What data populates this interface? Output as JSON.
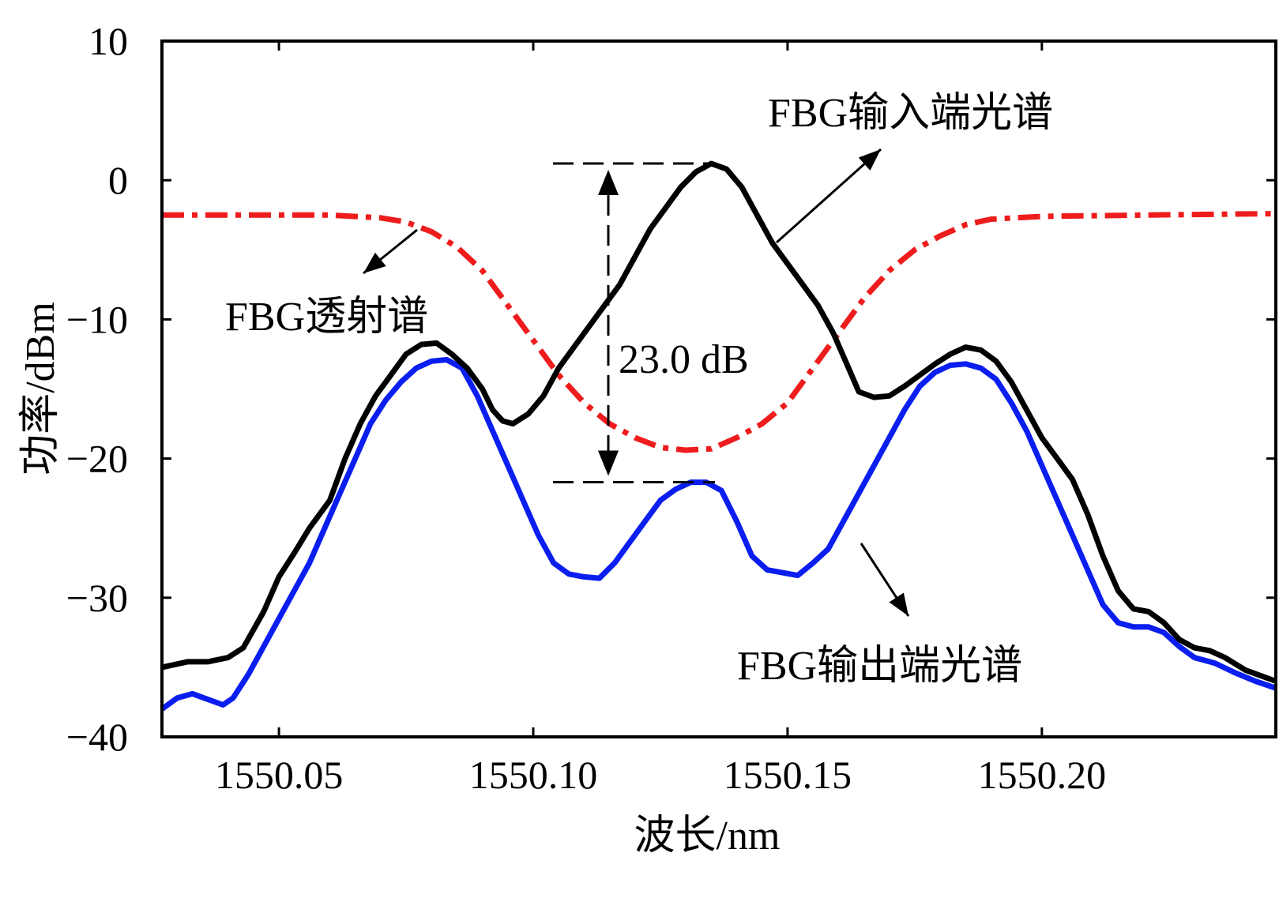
{
  "chart_data": {
    "type": "line",
    "xlabel": "波长/nm",
    "ylabel": "功率/dBm",
    "xlim": [
      1550.027,
      1550.246
    ],
    "ylim": [
      -40,
      10
    ],
    "xticks": [
      1550.05,
      1550.1,
      1550.15,
      1550.2
    ],
    "xtick_labels": [
      "1550.05",
      "1550.10",
      "1550.15",
      "1550.20"
    ],
    "yticks": [
      10,
      0,
      -10,
      -20,
      -30,
      -40
    ],
    "ytick_labels": [
      "10",
      "0",
      "−10",
      "−20",
      "−30",
      "−40"
    ],
    "grid": false,
    "series": [
      {
        "name": "FBG输入端光谱",
        "color": "#000000",
        "style": "solid",
        "points": [
          [
            1550.027,
            -35.0
          ],
          [
            1550.032,
            -34.6
          ],
          [
            1550.036,
            -34.6
          ],
          [
            1550.04,
            -34.3
          ],
          [
            1550.043,
            -33.6
          ],
          [
            1550.047,
            -31.0
          ],
          [
            1550.05,
            -28.5
          ],
          [
            1550.053,
            -26.8
          ],
          [
            1550.056,
            -25.0
          ],
          [
            1550.06,
            -23.0
          ],
          [
            1550.063,
            -20.0
          ],
          [
            1550.066,
            -17.5
          ],
          [
            1550.069,
            -15.5
          ],
          [
            1550.072,
            -14.0
          ],
          [
            1550.075,
            -12.5
          ],
          [
            1550.078,
            -11.8
          ],
          [
            1550.081,
            -11.7
          ],
          [
            1550.084,
            -12.5
          ],
          [
            1550.087,
            -13.5
          ],
          [
            1550.09,
            -15.0
          ],
          [
            1550.092,
            -16.5
          ],
          [
            1550.094,
            -17.3
          ],
          [
            1550.096,
            -17.5
          ],
          [
            1550.099,
            -16.8
          ],
          [
            1550.102,
            -15.5
          ],
          [
            1550.105,
            -13.5
          ],
          [
            1550.108,
            -12.0
          ],
          [
            1550.111,
            -10.5
          ],
          [
            1550.114,
            -9.0
          ],
          [
            1550.117,
            -7.5
          ],
          [
            1550.12,
            -5.5
          ],
          [
            1550.123,
            -3.5
          ],
          [
            1550.126,
            -2.0
          ],
          [
            1550.129,
            -0.5
          ],
          [
            1550.132,
            0.6
          ],
          [
            1550.135,
            1.2
          ],
          [
            1550.138,
            0.8
          ],
          [
            1550.141,
            -0.5
          ],
          [
            1550.144,
            -2.5
          ],
          [
            1550.147,
            -4.5
          ],
          [
            1550.15,
            -6.0
          ],
          [
            1550.153,
            -7.5
          ],
          [
            1550.156,
            -9.0
          ],
          [
            1550.159,
            -11.0
          ],
          [
            1550.162,
            -13.5
          ],
          [
            1550.164,
            -15.2
          ],
          [
            1550.167,
            -15.6
          ],
          [
            1550.17,
            -15.5
          ],
          [
            1550.173,
            -14.8
          ],
          [
            1550.176,
            -14.0
          ],
          [
            1550.179,
            -13.2
          ],
          [
            1550.182,
            -12.5
          ],
          [
            1550.185,
            -12.0
          ],
          [
            1550.188,
            -12.2
          ],
          [
            1550.191,
            -13.0
          ],
          [
            1550.194,
            -14.5
          ],
          [
            1550.197,
            -16.5
          ],
          [
            1550.2,
            -18.5
          ],
          [
            1550.203,
            -20.0
          ],
          [
            1550.206,
            -21.5
          ],
          [
            1550.209,
            -24.0
          ],
          [
            1550.212,
            -27.0
          ],
          [
            1550.215,
            -29.5
          ],
          [
            1550.218,
            -30.8
          ],
          [
            1550.221,
            -31.0
          ],
          [
            1550.224,
            -31.8
          ],
          [
            1550.227,
            -33.0
          ],
          [
            1550.23,
            -33.6
          ],
          [
            1550.233,
            -33.8
          ],
          [
            1550.236,
            -34.3
          ],
          [
            1550.24,
            -35.2
          ],
          [
            1550.246,
            -36.0
          ]
        ]
      },
      {
        "name": "FBG输出端光谱",
        "color": "#0a1ef0",
        "style": "solid",
        "points": [
          [
            1550.027,
            -38.0
          ],
          [
            1550.03,
            -37.2
          ],
          [
            1550.033,
            -36.9
          ],
          [
            1550.036,
            -37.3
          ],
          [
            1550.039,
            -37.7
          ],
          [
            1550.041,
            -37.2
          ],
          [
            1550.044,
            -35.5
          ],
          [
            1550.047,
            -33.5
          ],
          [
            1550.05,
            -31.5
          ],
          [
            1550.053,
            -29.5
          ],
          [
            1550.056,
            -27.5
          ],
          [
            1550.059,
            -25.0
          ],
          [
            1550.062,
            -22.5
          ],
          [
            1550.065,
            -20.0
          ],
          [
            1550.068,
            -17.5
          ],
          [
            1550.071,
            -15.8
          ],
          [
            1550.074,
            -14.5
          ],
          [
            1550.077,
            -13.5
          ],
          [
            1550.08,
            -13.0
          ],
          [
            1550.083,
            -12.9
          ],
          [
            1550.086,
            -13.5
          ],
          [
            1550.089,
            -15.5
          ],
          [
            1550.092,
            -18.0
          ],
          [
            1550.095,
            -20.5
          ],
          [
            1550.098,
            -23.0
          ],
          [
            1550.101,
            -25.5
          ],
          [
            1550.104,
            -27.5
          ],
          [
            1550.107,
            -28.3
          ],
          [
            1550.11,
            -28.5
          ],
          [
            1550.113,
            -28.6
          ],
          [
            1550.116,
            -27.5
          ],
          [
            1550.119,
            -26.0
          ],
          [
            1550.122,
            -24.5
          ],
          [
            1550.125,
            -23.0
          ],
          [
            1550.128,
            -22.2
          ],
          [
            1550.131,
            -21.7
          ],
          [
            1550.134,
            -21.7
          ],
          [
            1550.137,
            -22.3
          ],
          [
            1550.14,
            -24.5
          ],
          [
            1550.143,
            -27.0
          ],
          [
            1550.146,
            -28.0
          ],
          [
            1550.149,
            -28.2
          ],
          [
            1550.152,
            -28.4
          ],
          [
            1550.155,
            -27.5
          ],
          [
            1550.158,
            -26.5
          ],
          [
            1550.161,
            -24.5
          ],
          [
            1550.164,
            -22.5
          ],
          [
            1550.167,
            -20.5
          ],
          [
            1550.17,
            -18.5
          ],
          [
            1550.173,
            -16.5
          ],
          [
            1550.176,
            -14.8
          ],
          [
            1550.179,
            -13.8
          ],
          [
            1550.182,
            -13.3
          ],
          [
            1550.185,
            -13.2
          ],
          [
            1550.188,
            -13.5
          ],
          [
            1550.191,
            -14.3
          ],
          [
            1550.194,
            -16.0
          ],
          [
            1550.197,
            -18.0
          ],
          [
            1550.2,
            -20.5
          ],
          [
            1550.203,
            -23.0
          ],
          [
            1550.206,
            -25.5
          ],
          [
            1550.209,
            -28.0
          ],
          [
            1550.212,
            -30.5
          ],
          [
            1550.215,
            -31.8
          ],
          [
            1550.218,
            -32.1
          ],
          [
            1550.221,
            -32.1
          ],
          [
            1550.224,
            -32.5
          ],
          [
            1550.227,
            -33.5
          ],
          [
            1550.23,
            -34.3
          ],
          [
            1550.234,
            -34.7
          ],
          [
            1550.238,
            -35.4
          ],
          [
            1550.242,
            -36.0
          ],
          [
            1550.246,
            -36.5
          ]
        ]
      },
      {
        "name": "FBG透射谱",
        "color": "#ee1c1c",
        "style": "dashdot",
        "points": [
          [
            1550.027,
            -2.5
          ],
          [
            1550.04,
            -2.5
          ],
          [
            1550.06,
            -2.5
          ],
          [
            1550.07,
            -2.7
          ],
          [
            1550.075,
            -3.0
          ],
          [
            1550.08,
            -3.7
          ],
          [
            1550.085,
            -4.8
          ],
          [
            1550.09,
            -6.5
          ],
          [
            1550.095,
            -9.0
          ],
          [
            1550.1,
            -11.5
          ],
          [
            1550.105,
            -14.0
          ],
          [
            1550.11,
            -16.0
          ],
          [
            1550.115,
            -17.5
          ],
          [
            1550.12,
            -18.5
          ],
          [
            1550.125,
            -19.2
          ],
          [
            1550.13,
            -19.4
          ],
          [
            1550.135,
            -19.3
          ],
          [
            1550.14,
            -18.5
          ],
          [
            1550.145,
            -17.5
          ],
          [
            1550.15,
            -16.0
          ],
          [
            1550.155,
            -13.5
          ],
          [
            1550.16,
            -11.0
          ],
          [
            1550.165,
            -8.5
          ],
          [
            1550.17,
            -6.5
          ],
          [
            1550.175,
            -5.0
          ],
          [
            1550.18,
            -4.0
          ],
          [
            1550.185,
            -3.2
          ],
          [
            1550.19,
            -2.8
          ],
          [
            1550.2,
            -2.6
          ],
          [
            1550.22,
            -2.5
          ],
          [
            1550.246,
            -2.4
          ]
        ]
      }
    ],
    "annotations": [
      {
        "text": "FBG输入端光谱"
      },
      {
        "text": "FBG透射谱"
      },
      {
        "text": "FBG输出端光谱"
      },
      {
        "text": "23.0 dB"
      }
    ]
  }
}
